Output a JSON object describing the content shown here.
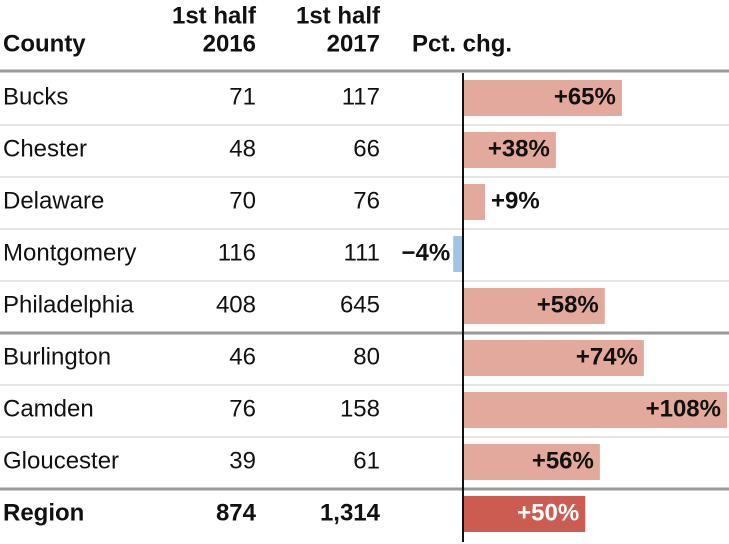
{
  "table": {
    "headers": [
      [
        "County"
      ],
      [
        "1st half",
        "2016"
      ],
      [
        "1st half",
        "2017"
      ],
      [
        "Pct. chg."
      ]
    ],
    "rows": [
      {
        "county": "Bucks",
        "h2016": "71",
        "h2017": "117",
        "pct": 65,
        "pct_label": "+65%"
      },
      {
        "county": "Chester",
        "h2016": "48",
        "h2017": "66",
        "pct": 38,
        "pct_label": "+38%"
      },
      {
        "county": "Delaware",
        "h2016": "70",
        "h2017": "76",
        "pct": 9,
        "pct_label": "+9%"
      },
      {
        "county": "Montgomery",
        "h2016": "116",
        "h2017": "111",
        "pct": -4,
        "pct_label": "−4%"
      },
      {
        "county": "Philadelphia",
        "h2016": "408",
        "h2017": "645",
        "pct": 58,
        "pct_label": "+58%"
      },
      {
        "county": "Burlington",
        "h2016": "46",
        "h2017": "80",
        "pct": 74,
        "pct_label": "+74%"
      },
      {
        "county": "Camden",
        "h2016": "76",
        "h2017": "158",
        "pct": 108,
        "pct_label": "+108%"
      },
      {
        "county": "Gloucester",
        "h2016": "39",
        "h2017": "61",
        "pct": 56,
        "pct_label": "+56%"
      },
      {
        "county": "Region",
        "h2016": "874",
        "h2017": "1,314",
        "pct": 50,
        "pct_label": "+50%"
      }
    ],
    "group_breaks_after": [
      4,
      7
    ],
    "total_row": 8,
    "colors": {
      "positive": "#e3a99d",
      "negative": "#9fc4e4",
      "total": "#cc5b51"
    }
  }
}
